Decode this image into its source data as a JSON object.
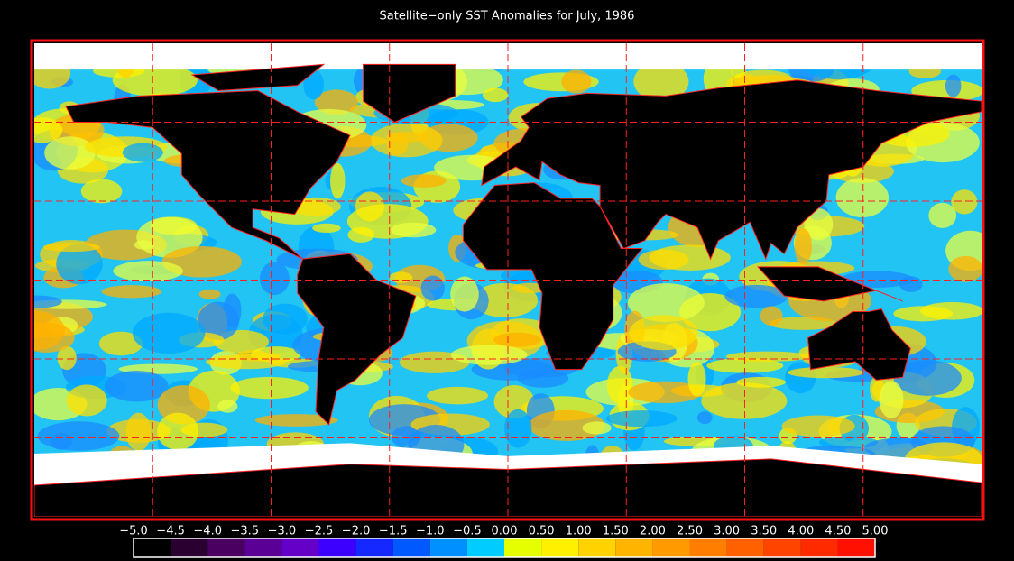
{
  "title": "Satellite−only SST Anomalies for July, 1986",
  "colorbar": {
    "ticks": [
      {
        "value": -5.0,
        "label": "−5.0"
      },
      {
        "value": -4.5,
        "label": "−4.5"
      },
      {
        "value": -4.0,
        "label": "−4.0"
      },
      {
        "value": -3.5,
        "label": "−3.5"
      },
      {
        "value": -3.0,
        "label": "−3.0"
      },
      {
        "value": -2.5,
        "label": "−2.5"
      },
      {
        "value": -2.0,
        "label": "−2.0"
      },
      {
        "value": -1.5,
        "label": "−1.5"
      },
      {
        "value": -1.0,
        "label": "−1.0"
      },
      {
        "value": -0.5,
        "label": "−0.5"
      },
      {
        "value": 0.0,
        "label": "0.00"
      },
      {
        "value": 0.5,
        "label": "0.50"
      },
      {
        "value": 1.0,
        "label": "1.00"
      },
      {
        "value": 1.5,
        "label": "1.50"
      },
      {
        "value": 2.0,
        "label": "2.00"
      },
      {
        "value": 2.5,
        "label": "2.50"
      },
      {
        "value": 3.0,
        "label": "3.00"
      },
      {
        "value": 3.5,
        "label": "3.50"
      },
      {
        "value": 4.0,
        "label": "4.00"
      },
      {
        "value": 4.5,
        "label": "4.50"
      },
      {
        "value": 5.0,
        "label": "5.00"
      }
    ],
    "colors": [
      "#000000",
      "#2a0030",
      "#4a0060",
      "#5a0096",
      "#6400c8",
      "#3c00ff",
      "#1428ff",
      "#0058ff",
      "#0090ff",
      "#00ccff",
      "#e6ff00",
      "#fff000",
      "#ffd200",
      "#ffb400",
      "#ff9a00",
      "#ff7e00",
      "#ff6000",
      "#ff4400",
      "#ff2a00",
      "#ff1000"
    ]
  }
}
